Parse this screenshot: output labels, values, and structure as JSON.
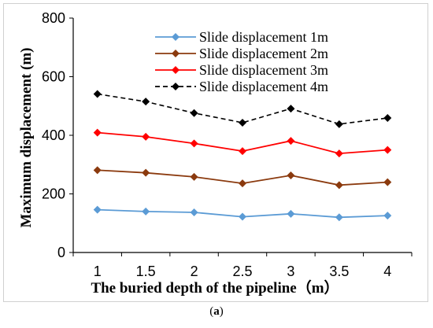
{
  "caption": {
    "open": "(",
    "letter": "a",
    "close": ")"
  },
  "chart_data": {
    "type": "line",
    "xlabel": "The buried depth of the pipeline（m）",
    "ylabel": "Maximum displacement (m)",
    "categories": [
      "1",
      "1.5",
      "2",
      "2.5",
      "3",
      "3.5",
      "4"
    ],
    "ylim": [
      0,
      800
    ],
    "yticks": [
      "0",
      "200",
      "400",
      "600",
      "800"
    ],
    "grid": false,
    "legend_position": "top-center",
    "series": [
      {
        "name": "Slide displacement  1m",
        "color": "#5b9bd5",
        "style": "solid",
        "values": [
          146,
          140,
          137,
          122,
          132,
          120,
          126
        ]
      },
      {
        "name": "Slide displacement  2m",
        "color": "#8b3a0e",
        "style": "solid",
        "values": [
          281,
          272,
          258,
          236,
          263,
          230,
          240
        ]
      },
      {
        "name": "Slide displacement  3m",
        "color": "#ff0000",
        "style": "solid",
        "values": [
          409,
          395,
          372,
          346,
          381,
          338,
          350
        ]
      },
      {
        "name": "Slide displacement  4m",
        "color": "#000000",
        "style": "dashed",
        "values": [
          541,
          515,
          476,
          443,
          491,
          438,
          459
        ]
      }
    ]
  }
}
